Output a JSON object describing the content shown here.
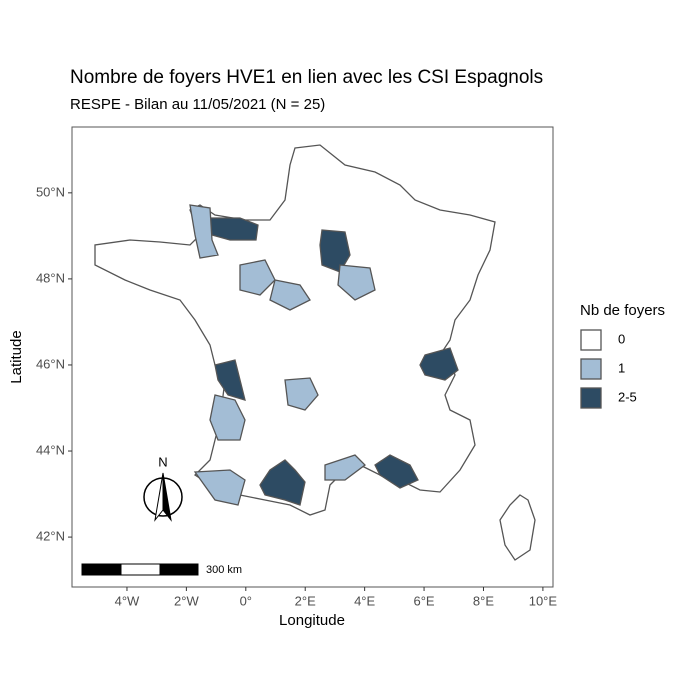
{
  "chart_data": {
    "type": "map",
    "title": "Nombre de foyers HVE1 en lien avec les CSI Espagnols",
    "subtitle": "RESPE - Bilan au 11/05/2021 (N = 25)",
    "x_label": "Longitude",
    "y_label": "Latitude",
    "xlim": [
      -5.85,
      10.34
    ],
    "ylim": [
      40.84,
      51.53
    ],
    "xticks": [
      {
        "value": -4,
        "label": "4°W"
      },
      {
        "value": -2,
        "label": "2°W"
      },
      {
        "value": 0,
        "label": "0°"
      },
      {
        "value": 2,
        "label": "2°E"
      },
      {
        "value": 4,
        "label": "4°E"
      },
      {
        "value": 6,
        "label": "6°E"
      },
      {
        "value": 8,
        "label": "8°E"
      },
      {
        "value": 10,
        "label": "10°E"
      }
    ],
    "yticks": [
      {
        "value": 42,
        "label": "42°N"
      },
      {
        "value": 44,
        "label": "44°N"
      },
      {
        "value": 46,
        "label": "46°N"
      },
      {
        "value": 48,
        "label": "48°N"
      },
      {
        "value": 50,
        "label": "50°N"
      }
    ],
    "legend": {
      "title": "Nb de foyers",
      "entries": [
        {
          "label": "0",
          "color": "#ffffff"
        },
        {
          "label": "1",
          "color": "#a3bdd5"
        },
        {
          "label": "2-5",
          "color": "#2d4b63"
        }
      ]
    },
    "scalebar_label": "300 km",
    "north_label": "N"
  }
}
